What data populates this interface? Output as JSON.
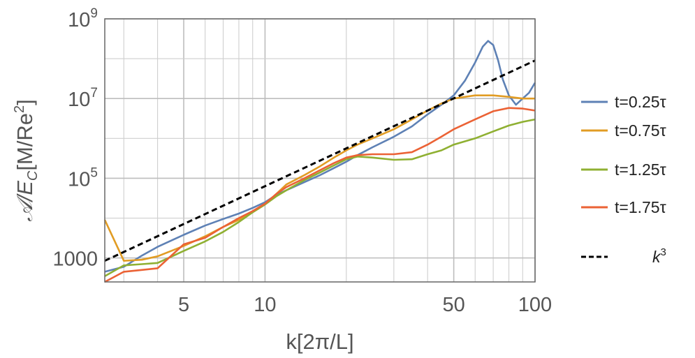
{
  "chart_data": {
    "type": "line",
    "x_scale": "log",
    "y_scale": "log",
    "xlim": [
      2.55,
      100
    ],
    "ylim": [
      250,
      1000000000
    ],
    "xlabel": "k[2π/L]",
    "ylabel": {
      "main": "𝒜/E",
      "sub": "C",
      "unit_open": "[M/Re",
      "unit_sup": "2",
      "unit_close": "]"
    },
    "x_ticks": [
      {
        "value": 5,
        "label": "5"
      },
      {
        "value": 10,
        "label": "10"
      },
      {
        "value": 50,
        "label": "50"
      },
      {
        "value": 100,
        "label": "100"
      }
    ],
    "y_ticks": [
      {
        "value": 1000,
        "label": "1000"
      },
      {
        "value": 100000,
        "base": "10",
        "exp": "5"
      },
      {
        "value": 10000000,
        "base": "10",
        "exp": "7"
      },
      {
        "value": 1000000000,
        "base": "10",
        "exp": "9"
      }
    ],
    "grid": true,
    "legend_position": "right",
    "series": [
      {
        "name": "t=0.25τ",
        "color": "#5e81b5",
        "style": "solid",
        "x": [
          2.55,
          3,
          3.5,
          4,
          5,
          6,
          7,
          8,
          9,
          10,
          11,
          12,
          14,
          16,
          18,
          20,
          22,
          25,
          30,
          35,
          40,
          45,
          50,
          55,
          60,
          64,
          67,
          70,
          73,
          76,
          80,
          85,
          90,
          95,
          100
        ],
        "y": [
          450,
          600,
          1150,
          1900,
          3800,
          6500,
          9500,
          13000,
          18000,
          25000,
          38000,
          50000,
          80000,
          120000,
          180000,
          260000,
          380000,
          600000,
          1100000,
          2000000,
          4000000,
          7000000,
          12000000,
          28000000,
          80000000,
          200000000,
          280000000,
          220000000,
          90000000,
          30000000,
          12000000,
          7000000,
          10000000,
          14000000,
          25000000
        ]
      },
      {
        "name": "t=0.75τ",
        "color": "#e19c24",
        "style": "solid",
        "x": [
          2.55,
          3,
          3.5,
          4,
          5,
          6,
          7,
          8,
          9,
          10,
          11,
          12,
          14,
          16,
          18,
          20,
          22,
          25,
          30,
          35,
          40,
          45,
          50,
          60,
          70,
          80,
          90,
          100
        ],
        "y": [
          9000,
          850,
          900,
          1100,
          2000,
          3500,
          6000,
          9000,
          14000,
          22000,
          40000,
          70000,
          120000,
          200000,
          330000,
          500000,
          700000,
          1000000,
          1700000,
          3000000,
          5000000,
          7500000,
          10000000,
          12000000,
          12000000,
          11000000,
          10000000,
          10000000
        ]
      },
      {
        "name": "t=1.25τ",
        "color": "#8fb032",
        "style": "solid",
        "x": [
          2.55,
          3,
          3.5,
          4,
          5,
          6,
          7,
          8,
          9,
          10,
          11,
          12,
          14,
          16,
          18,
          20,
          22,
          25,
          30,
          35,
          40,
          45,
          50,
          60,
          70,
          80,
          90,
          100
        ],
        "y": [
          350,
          650,
          700,
          750,
          1500,
          2600,
          4500,
          8000,
          14000,
          22000,
          35000,
          50000,
          90000,
          140000,
          210000,
          300000,
          350000,
          330000,
          290000,
          300000,
          400000,
          500000,
          700000,
          1000000,
          1500000,
          2100000,
          2600000,
          3000000
        ]
      },
      {
        "name": "t=1.75τ",
        "color": "#eb6235",
        "style": "solid",
        "x": [
          2.55,
          3,
          3.5,
          4,
          5,
          6,
          7,
          8,
          9,
          10,
          11,
          12,
          14,
          16,
          18,
          20,
          22,
          25,
          30,
          35,
          40,
          45,
          50,
          60,
          70,
          80,
          90,
          100
        ],
        "y": [
          250,
          450,
          500,
          550,
          2200,
          3200,
          6000,
          10000,
          15000,
          23000,
          40000,
          60000,
          100000,
          160000,
          240000,
          330000,
          380000,
          400000,
          400000,
          450000,
          700000,
          1100000,
          1700000,
          3000000,
          4800000,
          5800000,
          5600000,
          5000000
        ]
      },
      {
        "name": "k",
        "name_sup": "3",
        "color": "#000000",
        "style": "dashed",
        "x": [
          2.55,
          100
        ],
        "y": [
          850,
          90000000
        ]
      }
    ]
  }
}
